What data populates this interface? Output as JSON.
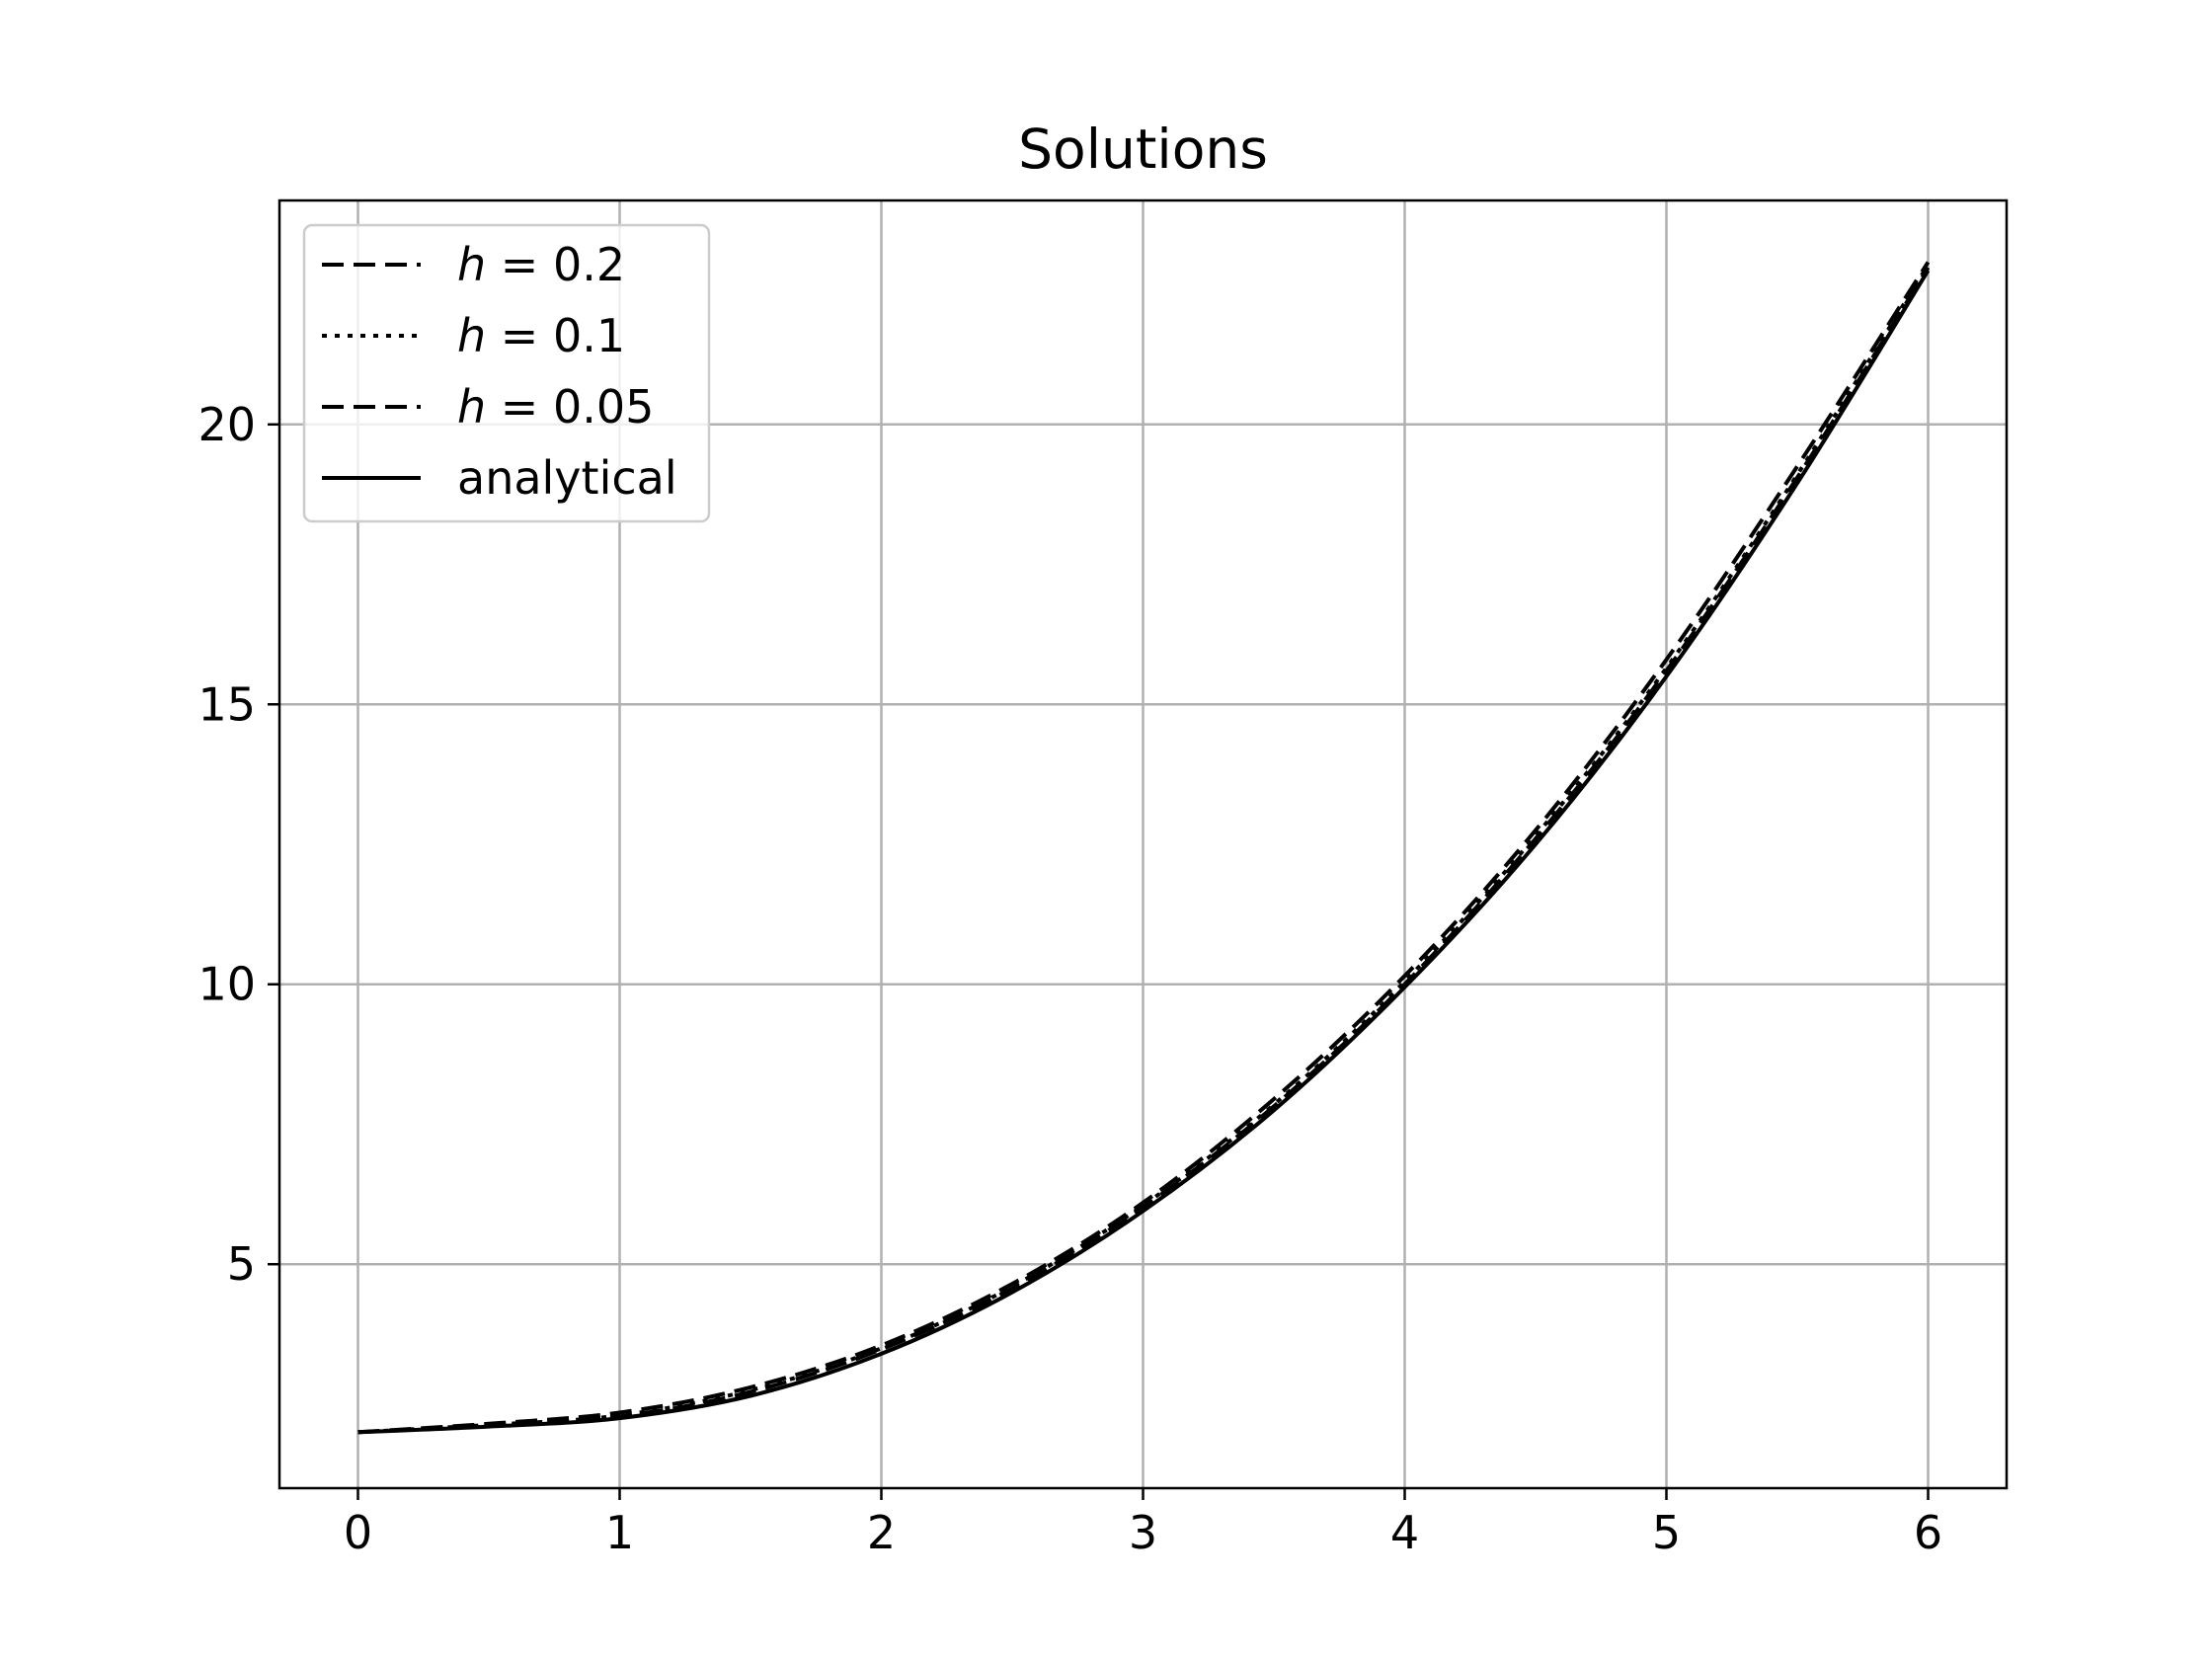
{
  "chart_data": {
    "type": "line",
    "title": "Solutions",
    "xlabel": "",
    "ylabel": "",
    "xlim": [
      -0.3,
      6.3
    ],
    "ylim": [
      1,
      24
    ],
    "xticks": [
      0,
      1,
      2,
      3,
      4,
      5,
      6
    ],
    "xtick_labels": [
      "0",
      "1",
      "2",
      "3",
      "4",
      "5",
      "6"
    ],
    "yticks": [
      5,
      10,
      15,
      20
    ],
    "ytick_labels": [
      "5",
      "10",
      "15",
      "20"
    ],
    "grid": true,
    "legend_position": "upper-left",
    "line_color": "#000000",
    "grid_color": "#b0b0b0",
    "series": [
      {
        "name_var": "h",
        "name_rest": " = 0.2",
        "style": "dashed",
        "x": [
          0,
          0.5,
          1,
          1.5,
          2,
          2.5,
          3,
          3.5,
          4,
          4.5,
          5,
          5.5,
          6
        ],
        "y": [
          2.0,
          2.15,
          2.35,
          2.8,
          3.55,
          4.65,
          6.1,
          7.95,
          10.15,
          12.75,
          15.8,
          19.25,
          22.9
        ]
      },
      {
        "name_var": "h",
        "name_rest": " = 0.1",
        "style": "dotted",
        "x": [
          0,
          0.5,
          1,
          1.5,
          2,
          2.5,
          3,
          3.5,
          4,
          4.5,
          5,
          5.5,
          6
        ],
        "y": [
          2.0,
          2.13,
          2.3,
          2.75,
          3.5,
          4.6,
          6.05,
          7.85,
          10.05,
          12.65,
          15.65,
          19.1,
          22.85
        ]
      },
      {
        "name_var": "h",
        "name_rest": " = 0.05",
        "style": "dashed",
        "x": [
          0,
          0.5,
          1,
          1.5,
          2,
          2.5,
          3,
          3.5,
          4,
          4.5,
          5,
          5.5,
          6
        ],
        "y": [
          2.0,
          2.12,
          2.28,
          2.72,
          3.48,
          4.57,
          6.02,
          7.82,
          10.0,
          12.6,
          15.6,
          19.05,
          22.8
        ]
      },
      {
        "name": "analytical",
        "style": "solid",
        "x": [
          0,
          0.5,
          1,
          1.5,
          2,
          2.5,
          3,
          3.5,
          4,
          4.5,
          5,
          5.5,
          6
        ],
        "y": [
          2.0,
          2.1,
          2.25,
          2.65,
          3.4,
          4.5,
          5.95,
          7.75,
          9.95,
          12.5,
          15.5,
          18.95,
          22.75
        ]
      }
    ]
  }
}
